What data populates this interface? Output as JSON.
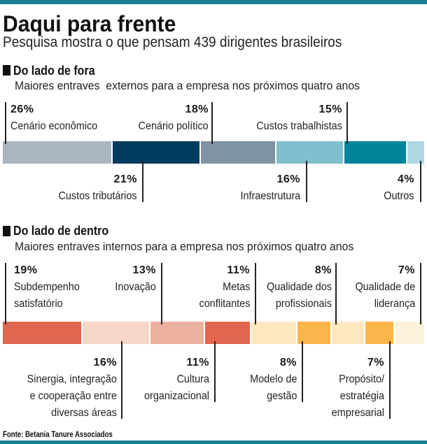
{
  "header": {
    "title": "Daqui para frente",
    "subtitle": "Pesquisa mostra o que pensam 439 dirigentes brasileiros"
  },
  "colors": {
    "accent": "#1b7f95",
    "text": "#1a1a1a"
  },
  "source": "Fonte: Betania Tanure Associados",
  "chart_data": [
    {
      "type": "bar",
      "orientation": "horizontal",
      "stacked": true,
      "title": "Do lado de fora",
      "subtitle": "Maiores entraves  externos para a empresa nos próximos quatro anos",
      "unit": "%",
      "xlim": [
        0,
        100
      ],
      "grid": false,
      "categories": [
        "Cenário econômico",
        "Custos tributários",
        "Cenário político",
        "Infraestrutura",
        "Custos trabalhistas",
        "Outros"
      ],
      "values": [
        26,
        21,
        18,
        16,
        15,
        4
      ],
      "value_labels": [
        "26%",
        "21%",
        "18%",
        "16%",
        "15%",
        "4%"
      ],
      "label_lines": [
        [
          "Cenário econômico"
        ],
        [
          "Custos tributários"
        ],
        [
          "Cenário político"
        ],
        [
          "Infraestrutura"
        ],
        [
          "Custos trabalhistas"
        ],
        [
          "Outros"
        ]
      ],
      "label_side": [
        "top",
        "bottom",
        "top",
        "bottom",
        "top",
        "bottom"
      ],
      "colors": [
        "#a9b5bf",
        "#003c5f",
        "#7f93a3",
        "#80bfcd",
        "#00849c",
        "#add7e2"
      ]
    },
    {
      "type": "bar",
      "orientation": "horizontal",
      "stacked": true,
      "title": "Do lado de dentro",
      "subtitle": "Maiores entraves internos para a empresa nos próximos quatro anos",
      "unit": "%",
      "xlim": [
        0,
        100
      ],
      "grid": false,
      "categories": [
        "Subdempenho satisfatório",
        "Sinergia, integração e cooperação entre diversas áreas",
        "Inovação",
        "Cultura organizacional",
        "Metas conflitantes",
        "Modelo de gestão",
        "Qualidade dos profissionais",
        "Propósito/ estratégia empresarial",
        "Qualidade de liderança"
      ],
      "values": [
        19,
        16,
        13,
        11,
        11,
        8,
        8,
        7,
        7
      ],
      "value_labels": [
        "19%",
        "16%",
        "13%",
        "11%",
        "11%",
        "8%",
        "8%",
        "7%",
        "7%"
      ],
      "label_lines": [
        [
          "Subdempenho",
          "satisfatório"
        ],
        [
          "Sinergia, integração",
          "e cooperação entre",
          "diversas áreas"
        ],
        [
          "Inovação"
        ],
        [
          "Cultura",
          "organizacional"
        ],
        [
          "Metas",
          "conflitantes"
        ],
        [
          "Modelo de",
          "gestão"
        ],
        [
          "Qualidade dos",
          "profissionais"
        ],
        [
          "Propósito/",
          "estratégia",
          "empresarial"
        ],
        [
          "Qualidade de",
          "liderança"
        ]
      ],
      "label_side": [
        "top",
        "bottom",
        "top",
        "bottom",
        "top",
        "bottom",
        "top",
        "bottom",
        "top"
      ],
      "colors": [
        "#e0664f",
        "#f6d7ca",
        "#ecb19e",
        "#e0664f",
        "#fee8c0",
        "#fbb64b",
        "#fee8c0",
        "#fbb64b",
        "#fef2da"
      ]
    }
  ]
}
